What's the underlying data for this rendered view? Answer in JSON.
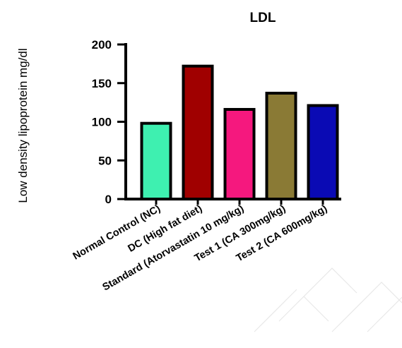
{
  "chart_data": {
    "type": "bar",
    "title": "LDL",
    "ylabel": "Low density lipoprotein mg/dl",
    "xlabel": "",
    "ylim": [
      0,
      200
    ],
    "yticks": [
      0,
      50,
      100,
      150,
      200
    ],
    "categories": [
      "Normal Control (NC)",
      "DC (High fat diet)",
      "Standard (Atorvastatin 10 mg/kg)",
      "Test 1 (CA 300mg/kg)",
      "Test 2 (CA 600mg/kg)"
    ],
    "values": [
      98,
      172,
      116,
      137,
      121
    ],
    "colors": [
      "#3ef0b0",
      "#a00000",
      "#f5187e",
      "#8a7a35",
      "#0a0ab4"
    ],
    "grid": false
  }
}
